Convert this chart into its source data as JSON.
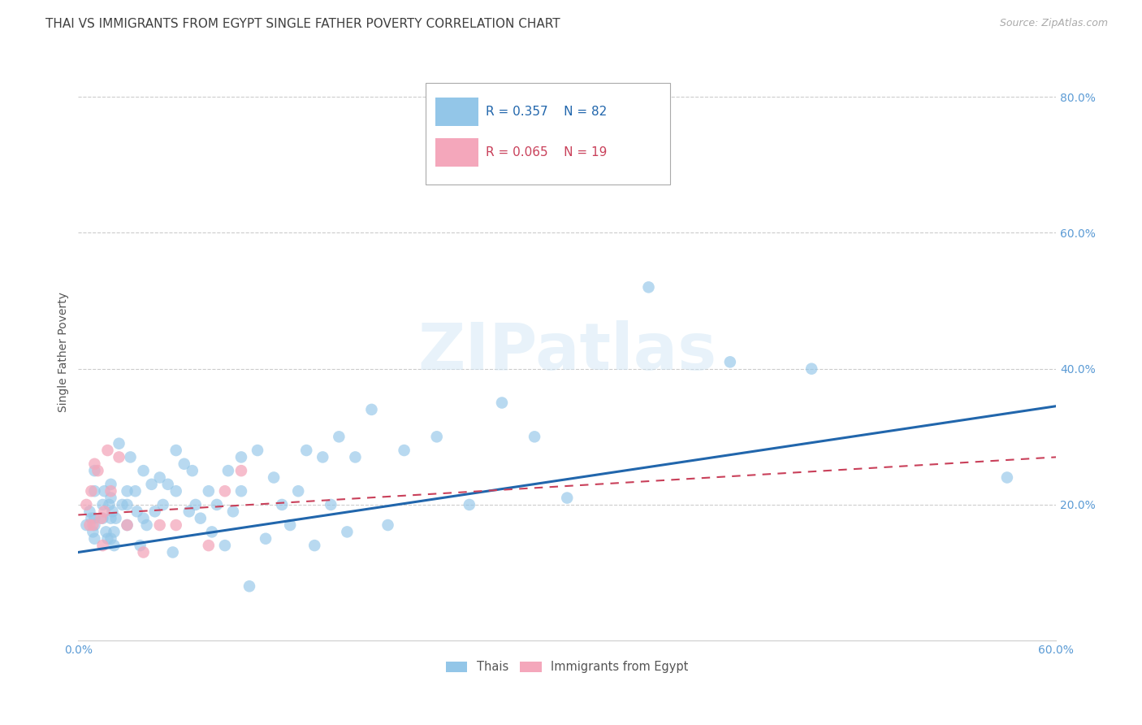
{
  "title": "THAI VS IMMIGRANTS FROM EGYPT SINGLE FATHER POVERTY CORRELATION CHART",
  "source": "Source: ZipAtlas.com",
  "ylabel": "Single Father Poverty",
  "xlim": [
    0.0,
    0.6
  ],
  "ylim": [
    0.0,
    0.85
  ],
  "yticks": [
    0.2,
    0.4,
    0.6,
    0.8
  ],
  "xticks": [
    0.0,
    0.1,
    0.2,
    0.3,
    0.4,
    0.5,
    0.6
  ],
  "thai_color": "#93c6e8",
  "egypt_color": "#f4a7bb",
  "thai_line_color": "#2166ac",
  "egypt_line_color": "#c9405a",
  "watermark_text": "ZIPatlas",
  "legend_R_thai": "R = 0.357",
  "legend_N_thai": "N = 82",
  "legend_R_egypt": "R = 0.065",
  "legend_N_egypt": "N = 19",
  "thai_scatter_x": [
    0.005,
    0.007,
    0.008,
    0.009,
    0.01,
    0.01,
    0.01,
    0.01,
    0.01,
    0.015,
    0.015,
    0.016,
    0.017,
    0.018,
    0.019,
    0.02,
    0.02,
    0.02,
    0.02,
    0.021,
    0.022,
    0.022,
    0.023,
    0.025,
    0.027,
    0.03,
    0.03,
    0.03,
    0.032,
    0.035,
    0.036,
    0.038,
    0.04,
    0.04,
    0.042,
    0.045,
    0.047,
    0.05,
    0.052,
    0.055,
    0.058,
    0.06,
    0.06,
    0.065,
    0.068,
    0.07,
    0.072,
    0.075,
    0.08,
    0.082,
    0.085,
    0.09,
    0.092,
    0.095,
    0.1,
    0.1,
    0.105,
    0.11,
    0.115,
    0.12,
    0.125,
    0.13,
    0.135,
    0.14,
    0.145,
    0.15,
    0.155,
    0.16,
    0.165,
    0.17,
    0.18,
    0.19,
    0.2,
    0.22,
    0.24,
    0.26,
    0.28,
    0.3,
    0.35,
    0.4,
    0.45,
    0.57
  ],
  "thai_scatter_y": [
    0.17,
    0.19,
    0.18,
    0.16,
    0.25,
    0.22,
    0.18,
    0.17,
    0.15,
    0.2,
    0.18,
    0.22,
    0.16,
    0.15,
    0.2,
    0.23,
    0.21,
    0.18,
    0.15,
    0.19,
    0.16,
    0.14,
    0.18,
    0.29,
    0.2,
    0.22,
    0.2,
    0.17,
    0.27,
    0.22,
    0.19,
    0.14,
    0.25,
    0.18,
    0.17,
    0.23,
    0.19,
    0.24,
    0.2,
    0.23,
    0.13,
    0.28,
    0.22,
    0.26,
    0.19,
    0.25,
    0.2,
    0.18,
    0.22,
    0.16,
    0.2,
    0.14,
    0.25,
    0.19,
    0.27,
    0.22,
    0.08,
    0.28,
    0.15,
    0.24,
    0.2,
    0.17,
    0.22,
    0.28,
    0.14,
    0.27,
    0.2,
    0.3,
    0.16,
    0.27,
    0.34,
    0.17,
    0.28,
    0.3,
    0.2,
    0.35,
    0.3,
    0.21,
    0.52,
    0.41,
    0.4,
    0.24
  ],
  "egypt_scatter_x": [
    0.005,
    0.007,
    0.008,
    0.009,
    0.01,
    0.012,
    0.014,
    0.015,
    0.016,
    0.018,
    0.02,
    0.025,
    0.03,
    0.04,
    0.05,
    0.06,
    0.08,
    0.09,
    0.1
  ],
  "egypt_scatter_y": [
    0.2,
    0.17,
    0.22,
    0.17,
    0.26,
    0.25,
    0.18,
    0.14,
    0.19,
    0.28,
    0.22,
    0.27,
    0.17,
    0.13,
    0.17,
    0.17,
    0.14,
    0.22,
    0.25
  ],
  "thai_line_x": [
    0.0,
    0.6
  ],
  "thai_line_y": [
    0.13,
    0.345
  ],
  "egypt_line_x": [
    0.0,
    0.6
  ],
  "egypt_line_y": [
    0.185,
    0.27
  ],
  "background_color": "#ffffff",
  "grid_color": "#cccccc",
  "title_color": "#404040",
  "tick_label_color": "#5b9bd5",
  "title_fontsize": 11,
  "axis_label_fontsize": 10,
  "tick_fontsize": 10
}
